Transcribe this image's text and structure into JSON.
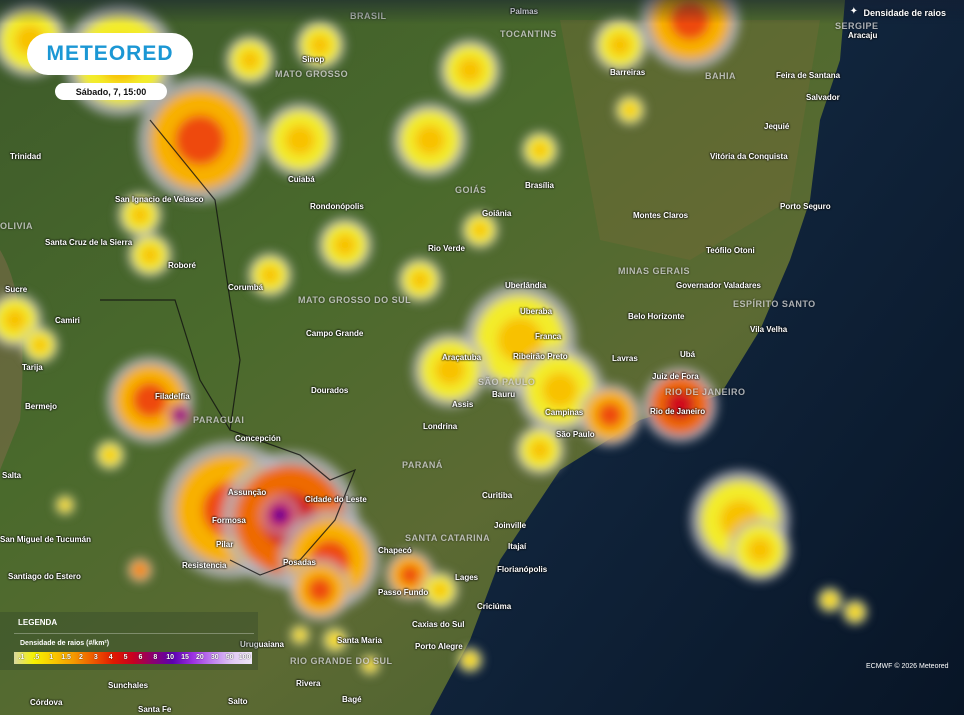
{
  "header": {
    "layer_title": "Densidade de raios",
    "layer_icon": "lightning-sparkle-icon"
  },
  "brand": {
    "logo_text": "METEORED",
    "color": "#1b97d4"
  },
  "timestamp": "Sábado, 7, 15:00",
  "legend": {
    "title": "LEGENDA",
    "subtitle": "Densidade de raios (#/km²)",
    "values": [
      ".1",
      ".5",
      "1",
      "1.5",
      "2",
      "3",
      "4",
      "5",
      "6",
      "8",
      "10",
      "15",
      "20",
      "30",
      "50",
      "100"
    ]
  },
  "copyright": "ECMWF © 2026 Meteored",
  "regions": [
    "BRASIL",
    "TOCANTINS",
    "MATO GROSSO",
    "BAHIA",
    "GOIÁS",
    "MINAS GERAIS",
    "ESPÍRITO SANTO",
    "MATO GROSSO DO SUL",
    "SÃO PAULO",
    "PARANÁ",
    "SANTA CATARINA",
    "RIO GRANDE DO SUL",
    "PARAGUAI",
    "OLIVIA",
    "SERGIPE",
    "RIO DE JANEIRO"
  ],
  "cities": [
    "Trinidad",
    "San Ignacio de Velasco",
    "Santa Cruz de la Sierra",
    "Roboré",
    "Sucre",
    "Camiri",
    "Tarija",
    "Bermejo",
    "Salta",
    "San Miguel de Tucumán",
    "Santiago do Estero",
    "Resistencia",
    "Formosa",
    "Pilar",
    "Assunção",
    "Cidade do Leste",
    "Posadas",
    "Concepción",
    "Filadelfia",
    "Corumbá",
    "Campo Grande",
    "Dourados",
    "Cuiabá",
    "Rondonópolis",
    "Sinop",
    "Barreiras",
    "Feira de Santana",
    "Salvador",
    "Jequié",
    "Vitória da Conquista",
    "Porto Seguro",
    "Montes Claros",
    "Teófilo Otoni",
    "Governador Valadares",
    "Belo Horizonte",
    "Vila Velha",
    "Ubá",
    "Lavras",
    "Juiz de Fora",
    "Rio de Janeiro",
    "Campinas",
    "São Paulo",
    "Bauru",
    "Assis",
    "Londrina",
    "Araçatuba",
    "Ribeirão Preto",
    "Franca",
    "Uberaba",
    "Uberlândia",
    "Rio Verde",
    "Goiânia",
    "Brasília",
    "Curitiba",
    "Joinville",
    "Itajaí",
    "Florianópolis",
    "Lages",
    "Chapecó",
    "Passo Fundo",
    "Criciúma",
    "Caxias do Sul",
    "Porto Alegre",
    "Santa Maria",
    "Uruguaiana",
    "Rivera",
    "Bagé",
    "Salto",
    "Sunchales",
    "Córdova",
    "Santa Fe",
    "Aracaju",
    "Palmas"
  ]
}
